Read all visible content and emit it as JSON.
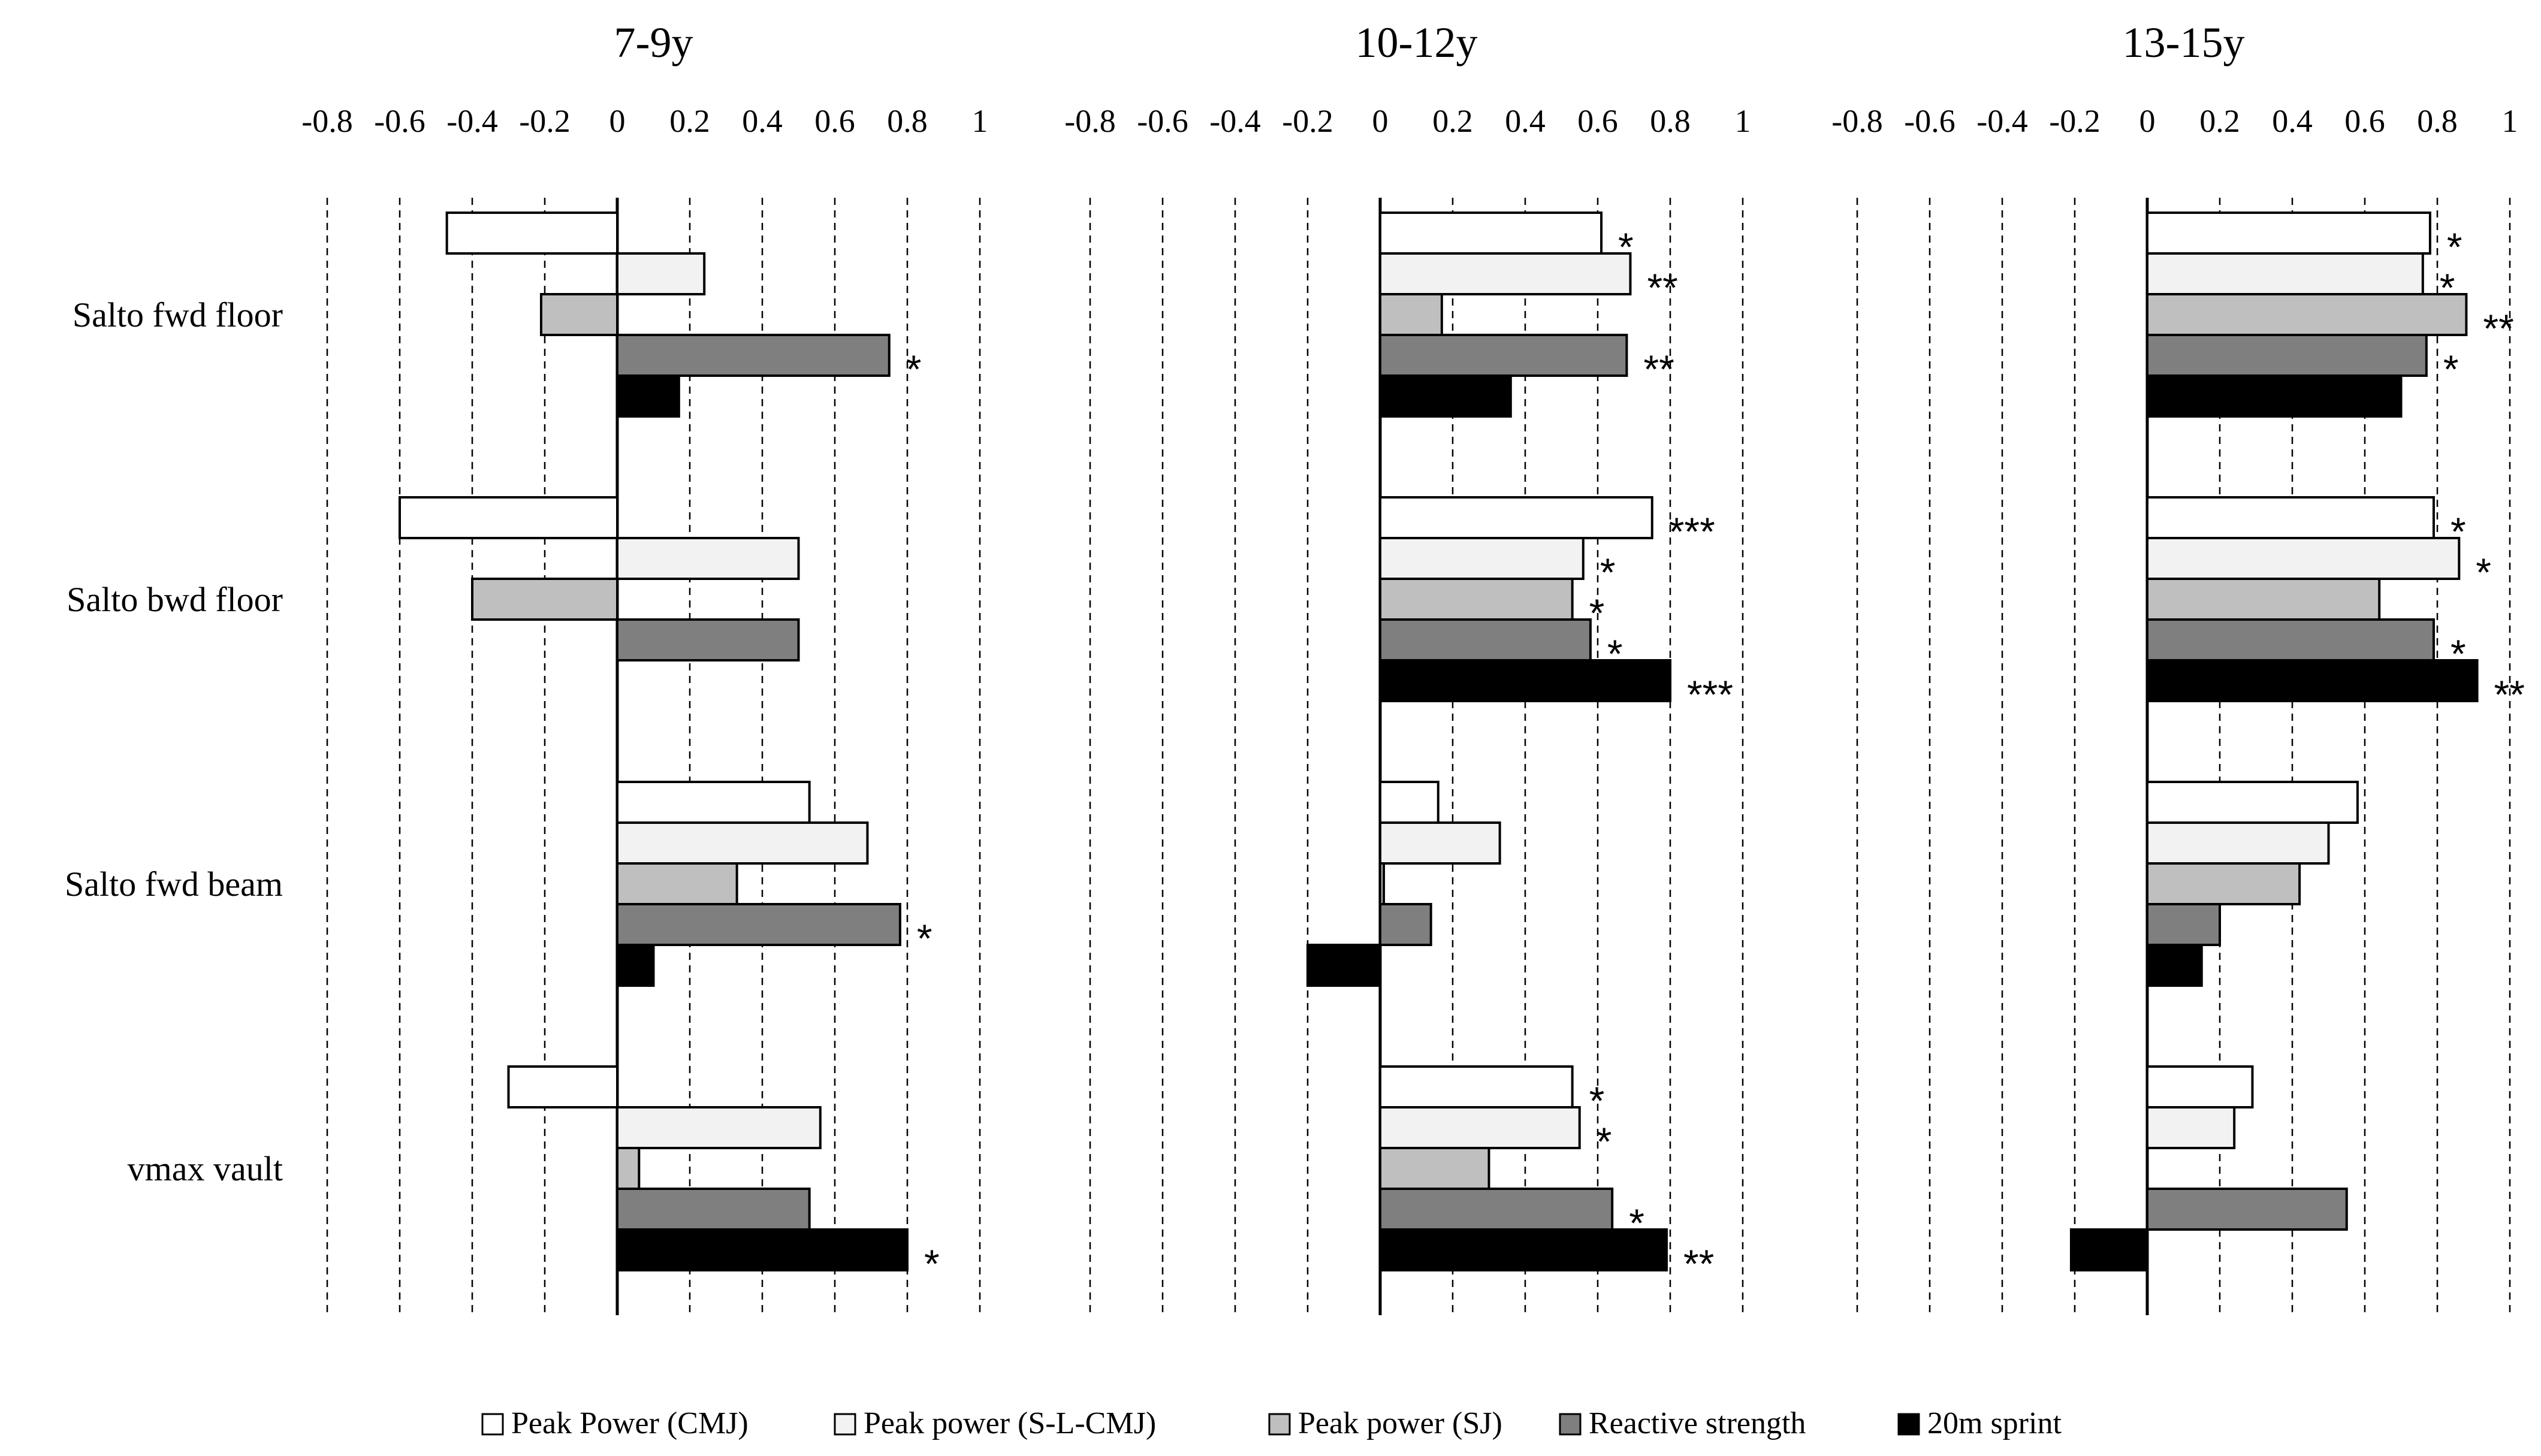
{
  "chart_data": {
    "type": "bar",
    "orientation": "horizontal",
    "categories": [
      "Salto fwd floor",
      "Salto bwd floor",
      "Salto fwd beam",
      "vmax vault"
    ],
    "xticks": [
      "-0.8",
      "-0.6",
      "-0.4",
      "-0.2",
      "0",
      "0.2",
      "0.4",
      "0.6",
      "0.8",
      "1"
    ],
    "xlim": [
      -0.8,
      1
    ],
    "grid": true,
    "legend_position": "bottom",
    "series": [
      {
        "name": "Peak Power (CMJ)",
        "color": "#ffffff"
      },
      {
        "name": "Peak power (S-L-CMJ)",
        "color": "#f2f2f2"
      },
      {
        "name": "Peak power (SJ)",
        "color": "#bfbfbf"
      },
      {
        "name": "Reactive strength",
        "color": "#7f7f7f"
      },
      {
        "name": "20m sprint",
        "color": "#000000"
      }
    ],
    "panels": [
      {
        "title": "7-9y",
        "values": [
          [
            -0.47,
            0.24,
            -0.21,
            0.75,
            0.17
          ],
          [
            -0.6,
            0.5,
            -0.4,
            0.5,
            null
          ],
          [
            0.53,
            0.69,
            0.33,
            0.78,
            0.1
          ],
          [
            -0.3,
            0.56,
            0.06,
            0.53,
            0.8
          ]
        ],
        "significance": [
          [
            "",
            "",
            "",
            "*",
            ""
          ],
          [
            "",
            "",
            "",
            "",
            ""
          ],
          [
            "",
            "",
            "",
            "*",
            ""
          ],
          [
            "",
            "",
            "",
            "",
            "*"
          ]
        ]
      },
      {
        "title": "10-12y",
        "values": [
          [
            0.61,
            0.69,
            0.17,
            0.68,
            0.36
          ],
          [
            0.75,
            0.56,
            0.53,
            0.58,
            0.8
          ],
          [
            0.16,
            0.33,
            0.01,
            0.14,
            -0.2
          ],
          [
            0.53,
            0.55,
            0.3,
            0.64,
            0.79
          ]
        ],
        "significance": [
          [
            "*",
            "**",
            "",
            "**",
            ""
          ],
          [
            "***",
            "*",
            "*",
            "*",
            "***"
          ],
          [
            "",
            "",
            "",
            "",
            ""
          ],
          [
            "*",
            "*",
            "",
            "*",
            "**"
          ]
        ]
      },
      {
        "title": "13-15y",
        "values": [
          [
            0.78,
            0.76,
            0.88,
            0.77,
            0.7
          ],
          [
            0.79,
            0.86,
            0.64,
            0.79,
            0.91
          ],
          [
            0.58,
            0.5,
            0.42,
            0.2,
            0.15
          ],
          [
            0.29,
            0.24,
            null,
            0.55,
            -0.21
          ]
        ],
        "significance": [
          [
            "*",
            "*",
            "**",
            "*",
            ""
          ],
          [
            "*",
            "*",
            "",
            "*",
            "**"
          ],
          [
            "",
            "",
            "",
            "",
            ""
          ],
          [
            "",
            "",
            "",
            "",
            ""
          ]
        ]
      }
    ]
  }
}
